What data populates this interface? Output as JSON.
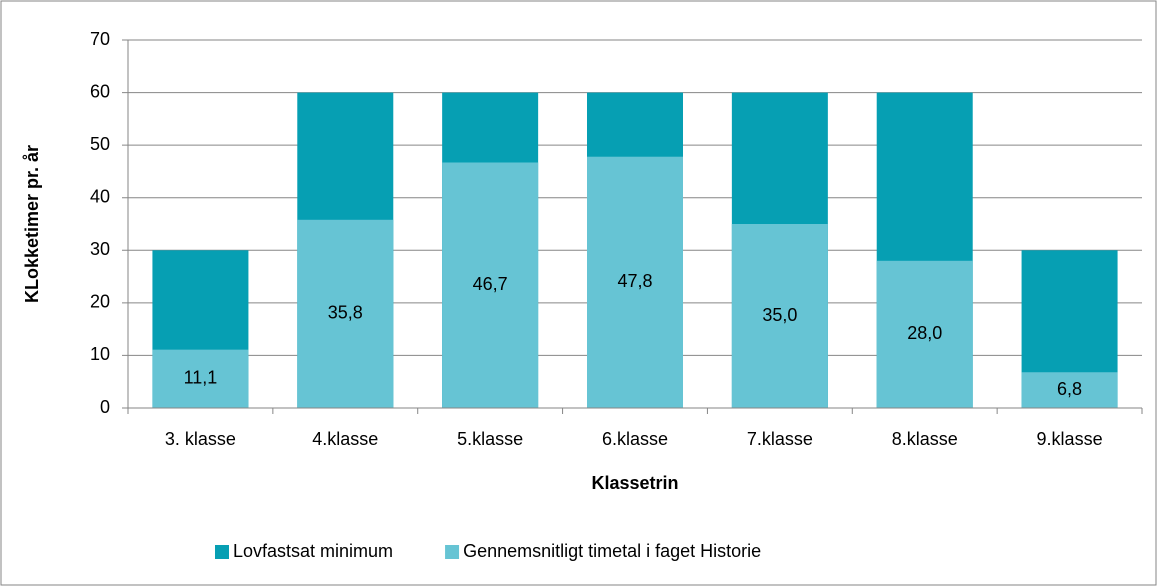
{
  "chart_data": {
    "type": "bar",
    "stacked": false,
    "x_label": "Klassetrin",
    "y_label": "KLokketimer pr. år",
    "categories": [
      "3. klasse",
      "4.klasse",
      "5.klasse",
      "6.klasse",
      "7.klasse",
      "8.klasse",
      "9.klasse"
    ],
    "series": [
      {
        "name": "Lovfastsat minimum",
        "color": "#069fb3",
        "values": [
          30,
          60,
          60,
          60,
          60,
          60,
          30
        ]
      },
      {
        "name": "Gennemsnitligt timetal i faget Historie",
        "color": "#66c4d4",
        "values": [
          11.1,
          35.8,
          46.7,
          47.8,
          35.0,
          28.0,
          6.8
        ],
        "value_labels": [
          "11,1",
          "35,8",
          "46,7",
          "47,8",
          "35,0",
          "28,0",
          "6,8"
        ]
      }
    ],
    "ylim": [
      0,
      70
    ],
    "yticks": [
      0,
      10,
      20,
      30,
      40,
      50,
      60,
      70
    ],
    "grid": true,
    "legend": "bottom"
  }
}
